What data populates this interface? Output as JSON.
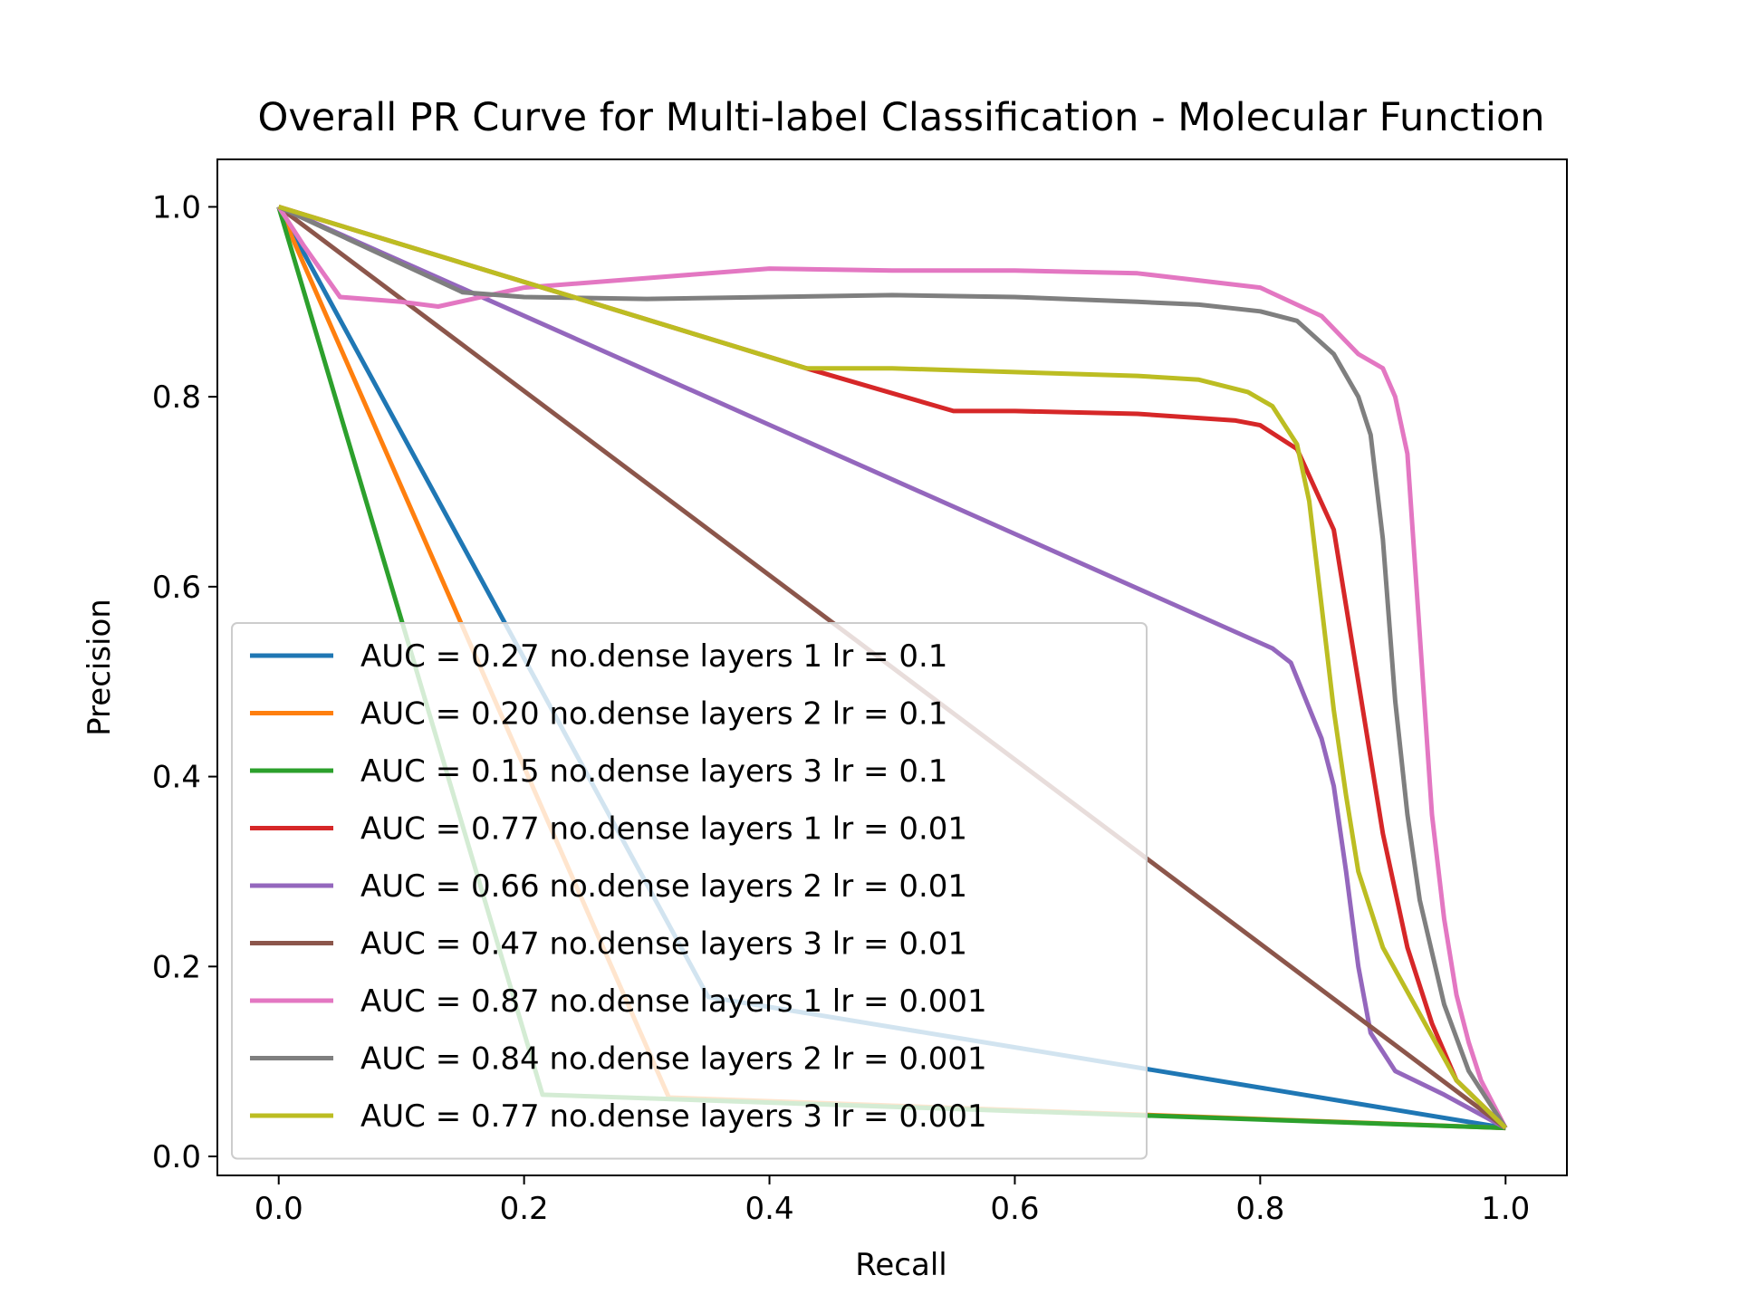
{
  "chart_data": {
    "type": "line",
    "title": "Overall PR Curve for Multi-label Classification - Molecular Function",
    "xlabel": "Recall",
    "ylabel": "Precision",
    "xlim": [
      -0.05,
      1.05
    ],
    "ylim": [
      -0.02,
      1.05
    ],
    "xticks": [
      "0.0",
      "0.2",
      "0.4",
      "0.6",
      "0.8",
      "1.0"
    ],
    "yticks": [
      "0.0",
      "0.2",
      "0.4",
      "0.6",
      "0.8",
      "1.0"
    ],
    "grid": false,
    "legend_position": "lower-left",
    "series": [
      {
        "name": "AUC = 0.27 no.dense layers 1 lr = 0.1",
        "color": "#1f77b4",
        "x": [
          0,
          0.35,
          1.0
        ],
        "y": [
          1.0,
          0.168,
          0.03
        ]
      },
      {
        "name": "AUC = 0.20 no.dense layers 2 lr = 0.1",
        "color": "#ff7f0e",
        "x": [
          0,
          0.318,
          1.0
        ],
        "y": [
          1.0,
          0.062,
          0.03
        ]
      },
      {
        "name": "AUC = 0.15 no.dense layers 3 lr = 0.1",
        "color": "#2ca02c",
        "x": [
          0,
          0.215,
          1.0
        ],
        "y": [
          1.0,
          0.065,
          0.03
        ]
      },
      {
        "name": "AUC = 0.77 no.dense layers 1 lr = 0.01",
        "color": "#d62728",
        "x": [
          0,
          0.43,
          0.55,
          0.6,
          0.7,
          0.78,
          0.8,
          0.83,
          0.86,
          0.88,
          0.9,
          0.92,
          0.94,
          0.96,
          1.0
        ],
        "y": [
          1.0,
          0.83,
          0.785,
          0.785,
          0.782,
          0.775,
          0.77,
          0.745,
          0.66,
          0.5,
          0.34,
          0.22,
          0.14,
          0.08,
          0.03
        ]
      },
      {
        "name": "AUC = 0.66 no.dense layers 2 lr = 0.01",
        "color": "#9467bd",
        "x": [
          0,
          0.81,
          0.825,
          0.85,
          0.86,
          0.87,
          0.88,
          0.89,
          0.91,
          0.95,
          1.0
        ],
        "y": [
          1.0,
          0.535,
          0.52,
          0.44,
          0.39,
          0.3,
          0.2,
          0.13,
          0.09,
          0.065,
          0.03
        ]
      },
      {
        "name": "AUC = 0.47 no.dense layers 3 lr = 0.01",
        "color": "#8c564b",
        "x": [
          0,
          1.0
        ],
        "y": [
          1.0,
          0.03
        ]
      },
      {
        "name": "AUC = 0.87 no.dense layers 1 lr = 0.001",
        "color": "#e377c2",
        "x": [
          0,
          0.02,
          0.05,
          0.1,
          0.13,
          0.2,
          0.3,
          0.4,
          0.5,
          0.6,
          0.7,
          0.8,
          0.85,
          0.88,
          0.9,
          0.91,
          0.92,
          0.93,
          0.94,
          0.95,
          0.96,
          0.97,
          0.98,
          1.0
        ],
        "y": [
          1.0,
          0.96,
          0.905,
          0.9,
          0.895,
          0.915,
          0.925,
          0.935,
          0.933,
          0.933,
          0.93,
          0.915,
          0.885,
          0.845,
          0.83,
          0.8,
          0.74,
          0.55,
          0.36,
          0.25,
          0.17,
          0.12,
          0.08,
          0.03
        ]
      },
      {
        "name": "AUC = 0.84 no.dense layers 2 lr = 0.001",
        "color": "#7f7f7f",
        "x": [
          0,
          0.15,
          0.2,
          0.3,
          0.4,
          0.5,
          0.6,
          0.7,
          0.75,
          0.8,
          0.83,
          0.86,
          0.88,
          0.89,
          0.9,
          0.91,
          0.92,
          0.93,
          0.95,
          0.97,
          1.0
        ],
        "y": [
          1.0,
          0.91,
          0.905,
          0.903,
          0.905,
          0.907,
          0.905,
          0.9,
          0.897,
          0.89,
          0.88,
          0.845,
          0.8,
          0.76,
          0.65,
          0.48,
          0.36,
          0.27,
          0.16,
          0.09,
          0.03
        ]
      },
      {
        "name": "AUC = 0.77 no.dense layers 3 lr = 0.001",
        "color": "#bcbd22",
        "x": [
          0,
          0.43,
          0.5,
          0.6,
          0.7,
          0.75,
          0.79,
          0.81,
          0.83,
          0.84,
          0.85,
          0.86,
          0.87,
          0.88,
          0.9,
          0.93,
          0.96,
          1.0
        ],
        "y": [
          1.0,
          0.83,
          0.83,
          0.826,
          0.822,
          0.818,
          0.805,
          0.79,
          0.75,
          0.69,
          0.58,
          0.47,
          0.38,
          0.3,
          0.22,
          0.15,
          0.08,
          0.03
        ]
      }
    ]
  }
}
